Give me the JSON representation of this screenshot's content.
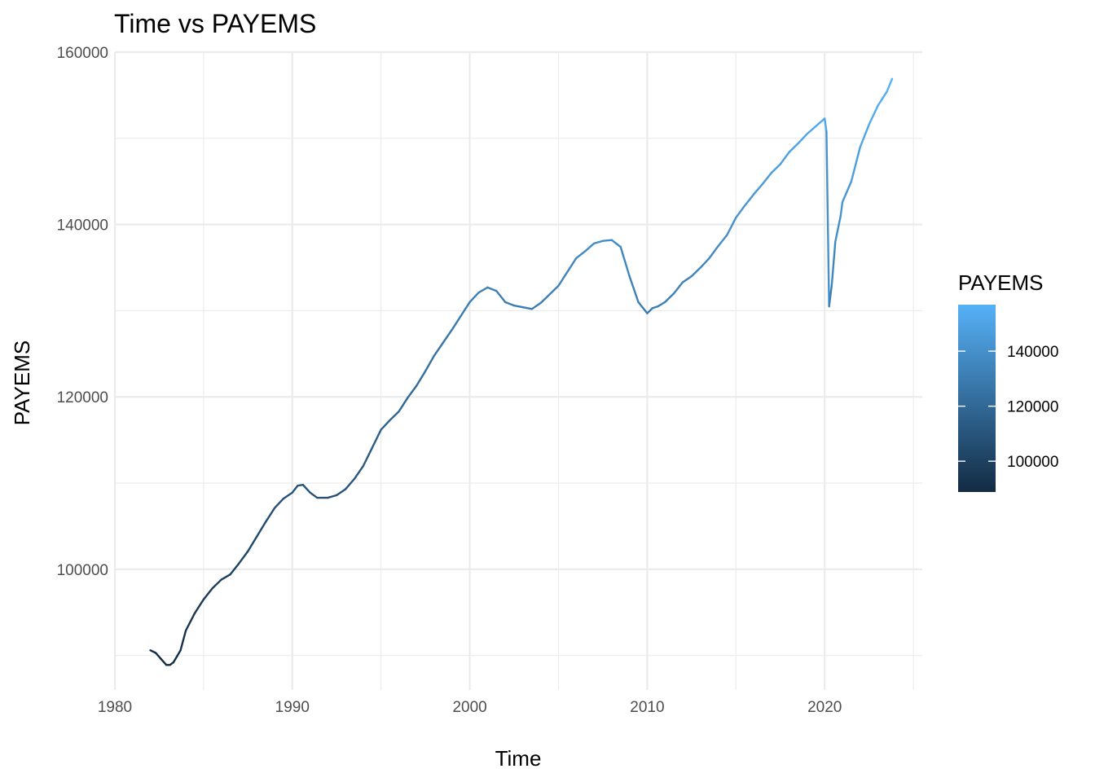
{
  "chart_data": {
    "type": "line",
    "title": "Time vs PAYEMS",
    "xlabel": "Time",
    "ylabel": "PAYEMS",
    "xlim": [
      1980,
      2025.5
    ],
    "ylim": [
      86000,
      160000
    ],
    "x_ticks": [
      1980,
      1990,
      2000,
      2010,
      2020
    ],
    "x_tick_labels": [
      "1980",
      "1990",
      "2000",
      "2010",
      "2020"
    ],
    "x_minor_ticks": [
      1985,
      1995,
      2005,
      2015,
      2025
    ],
    "y_ticks": [
      100000,
      120000,
      140000,
      160000
    ],
    "y_tick_labels": [
      "100000",
      "120000",
      "140000",
      "160000"
    ],
    "y_minor_ticks": [
      90000,
      110000,
      130000,
      150000
    ],
    "grid": true,
    "color_scale": {
      "low": "#132B43",
      "high": "#56B1F7",
      "min": 88800,
      "max": 156900
    },
    "legend": {
      "title": "PAYEMS",
      "position": "right",
      "break_values": [
        100000,
        120000,
        140000
      ],
      "labels": [
        "100000",
        "120000",
        "140000"
      ]
    },
    "series": [
      {
        "x": [
          1982.0,
          1982.3,
          1982.6,
          1982.9,
          1983.1,
          1983.3,
          1983.5,
          1983.7,
          1984.0,
          1984.5,
          1985.0,
          1985.5,
          1986.0,
          1986.5,
          1987.0,
          1987.5,
          1988.0,
          1988.5,
          1989.0,
          1989.5,
          1990.0,
          1990.3,
          1990.6,
          1991.0,
          1991.4,
          1991.8,
          1992.0,
          1992.5,
          1993.0,
          1993.5,
          1994.0,
          1994.5,
          1995.0,
          1995.5,
          1996.0,
          1996.5,
          1997.0,
          1997.5,
          1998.0,
          1998.5,
          1999.0,
          1999.5,
          2000.0,
          2000.5,
          2001.0,
          2001.5,
          2002.0,
          2002.5,
          2003.0,
          2003.5,
          2004.0,
          2004.5,
          2005.0,
          2005.5,
          2006.0,
          2006.5,
          2007.0,
          2007.5,
          2008.0,
          2008.5,
          2009.0,
          2009.5,
          2010.0,
          2010.3,
          2010.6,
          2011.0,
          2011.5,
          2012.0,
          2012.5,
          2013.0,
          2013.5,
          2014.0,
          2014.5,
          2015.0,
          2015.5,
          2016.0,
          2016.5,
          2017.0,
          2017.5,
          2018.0,
          2018.5,
          2019.0,
          2019.5,
          2020.0,
          2020.1,
          2020.25,
          2020.4,
          2020.6,
          2020.9,
          2021.0,
          2021.5,
          2022.0,
          2022.5,
          2023.0,
          2023.5,
          2023.8
        ],
        "y": [
          90600,
          90300,
          89600,
          88900,
          88900,
          89200,
          89900,
          90600,
          92900,
          94900,
          96500,
          97800,
          98800,
          99400,
          100700,
          102100,
          103800,
          105500,
          107100,
          108200,
          108900,
          109700,
          109800,
          108900,
          108300,
          108300,
          108300,
          108600,
          109300,
          110500,
          112000,
          114100,
          116200,
          117300,
          118300,
          119900,
          121300,
          123000,
          124800,
          126300,
          127800,
          129400,
          131000,
          132100,
          132700,
          132300,
          131000,
          130600,
          130400,
          130200,
          130900,
          131900,
          132900,
          134500,
          136100,
          136900,
          137800,
          138100,
          138200,
          137400,
          134000,
          131000,
          129700,
          130300,
          130500,
          131000,
          132000,
          133300,
          134000,
          135000,
          136100,
          137500,
          138800,
          140800,
          142200,
          143500,
          144700,
          146000,
          147000,
          148400,
          149400,
          150500,
          151400,
          152300,
          150800,
          130500,
          133000,
          138000,
          141000,
          142600,
          145000,
          149000,
          151600,
          153800,
          155400,
          156900
        ]
      }
    ]
  }
}
